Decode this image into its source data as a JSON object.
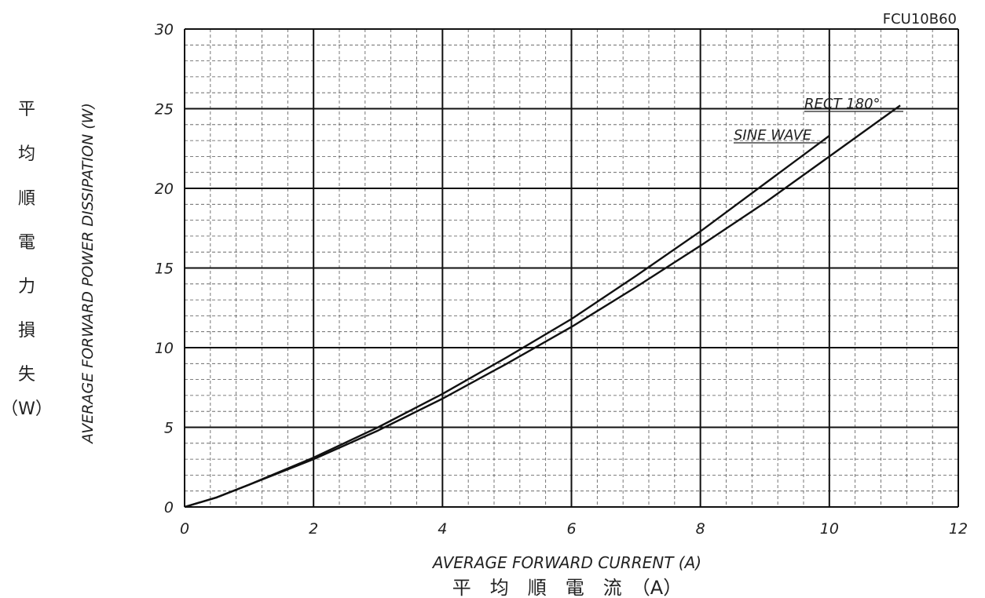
{
  "chart_data": {
    "type": "line",
    "part_number": "FCU10B60",
    "xlabel": "AVERAGE FORWARD CURRENT (A)",
    "xlabel_jp": "平　均　順　電　流　（A）",
    "ylabel": "AVERAGE FORWARD POWER DISSIPATION (W)",
    "ylabel_jp": [
      "平",
      "均",
      "順",
      "電",
      "力",
      "損",
      "失",
      "（W）"
    ],
    "xlim": [
      0,
      12
    ],
    "ylim": [
      0,
      30
    ],
    "x_ticks": [
      0,
      2,
      4,
      6,
      8,
      10,
      12
    ],
    "x_tick_labels": [
      "0",
      "2",
      "4",
      "6",
      "8",
      "10",
      "12"
    ],
    "y_ticks": [
      0,
      5,
      10,
      15,
      20,
      25,
      30
    ],
    "y_tick_labels": [
      "0",
      "5",
      "10",
      "15",
      "20",
      "25",
      "30"
    ],
    "grid": true,
    "series": [
      {
        "name": "SINE WAVE",
        "x": [
          0,
          0.5,
          1,
          2,
          3,
          4,
          5,
          6,
          7,
          8,
          9,
          10
        ],
        "y": [
          0,
          0.6,
          1.4,
          3.1,
          5.0,
          7.1,
          9.4,
          11.8,
          14.5,
          17.3,
          20.3,
          23.3
        ]
      },
      {
        "name": "RECT 180°",
        "x": [
          0,
          0.5,
          1,
          2,
          3,
          4,
          5,
          6,
          7,
          8,
          9,
          10,
          11.1
        ],
        "y": [
          0,
          0.6,
          1.4,
          3.0,
          4.8,
          6.8,
          9.0,
          11.3,
          13.8,
          16.4,
          19.1,
          22.0,
          25.2
        ]
      }
    ]
  }
}
